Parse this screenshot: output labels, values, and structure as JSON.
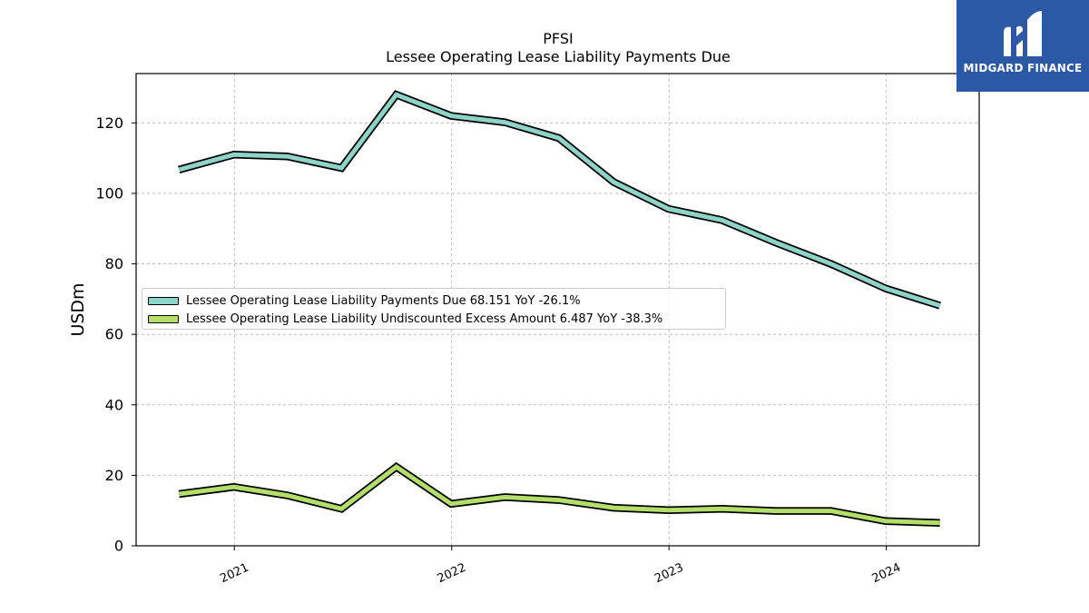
{
  "chart_data": {
    "type": "line",
    "title": "PFSI",
    "subtitle": "Lessee Operating Lease Liability Payments Due",
    "ylabel": "USDm",
    "xlabel": "",
    "ylim": [
      0,
      134
    ],
    "yticks": [
      0,
      20,
      40,
      60,
      80,
      100,
      120
    ],
    "xticks": [
      "2021",
      "2022",
      "2023",
      "2024"
    ],
    "grid": true,
    "legend_position": "center-left",
    "x": [
      "2020-09-30",
      "2020-12-31",
      "2021-03-31",
      "2021-06-30",
      "2021-09-30",
      "2021-12-31",
      "2022-03-31",
      "2022-06-30",
      "2022-09-30",
      "2022-12-31",
      "2023-03-31",
      "2023-06-30",
      "2023-09-30",
      "2023-12-31",
      "2024-03-31"
    ],
    "series": [
      {
        "name": "Lessee Operating Lease Liability Payments Due",
        "legend_label": "Lessee Operating Lease Liability Payments Due  68.151 YoY -26.1%",
        "color": "#8dd3c7",
        "values": [
          106.7,
          111.0,
          110.5,
          107.2,
          128.0,
          122.0,
          120.2,
          115.7,
          103.2,
          95.6,
          92.4,
          86.0,
          80.0,
          73.0,
          68.151
        ]
      },
      {
        "name": "Lessee Operating Lease Liability Undiscounted Excess Amount",
        "legend_label": "Lessee Operating Lease Liability Undiscounted Excess Amount  6.487 YoY -38.3%",
        "color": "#b3de69",
        "values": [
          14.7,
          16.7,
          14.3,
          10.5,
          22.4,
          11.9,
          13.8,
          13.0,
          10.8,
          10.1,
          10.5,
          9.9,
          9.9,
          7.0,
          6.487
        ]
      }
    ]
  },
  "logo": {
    "text": "MIDGARD FINANCE"
  }
}
